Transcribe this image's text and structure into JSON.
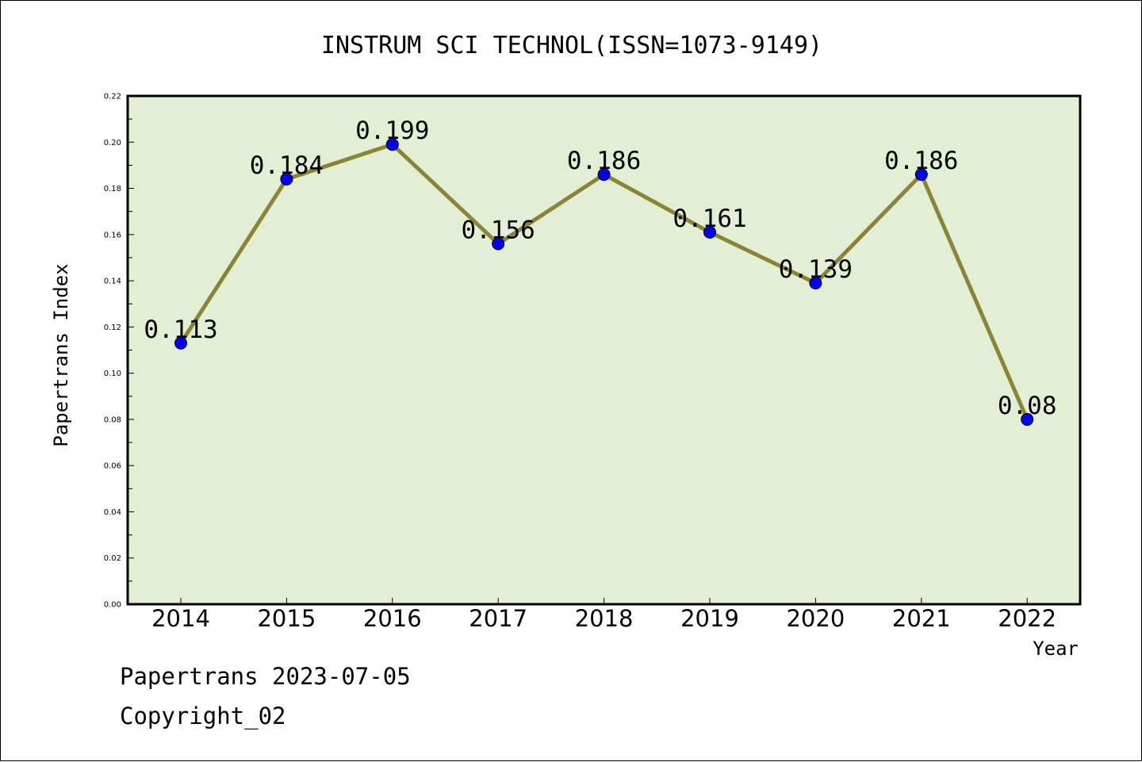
{
  "chart_data": {
    "type": "line",
    "title": "INSTRUM SCI TECHNOL(ISSN=1073-9149)",
    "xlabel": "Year",
    "ylabel": "Papertrans Index",
    "x": [
      "2014",
      "2015",
      "2016",
      "2017",
      "2018",
      "2019",
      "2020",
      "2021",
      "2022"
    ],
    "values": [
      0.113,
      0.184,
      0.199,
      0.156,
      0.186,
      0.161,
      0.139,
      0.186,
      0.08
    ],
    "data_labels": [
      "0.113",
      "0.184",
      "0.199",
      "0.156",
      "0.186",
      "0.161",
      "0.139",
      "0.186",
      "0.08"
    ],
    "ylim": [
      0,
      0.22
    ],
    "yticks": [
      "0.00",
      "0.02",
      "0.04",
      "0.06",
      "0.08",
      "0.10",
      "0.12",
      "0.14",
      "0.16",
      "0.18",
      "0.20",
      "0.22"
    ],
    "grid": false,
    "legend": "none",
    "colors": {
      "plot_background": "#e2efd5",
      "line": "#8b8434",
      "marker": "#0000ff"
    }
  },
  "footer": {
    "line1": "Papertrans 2023-07-05",
    "line2": "Copyright_02"
  }
}
